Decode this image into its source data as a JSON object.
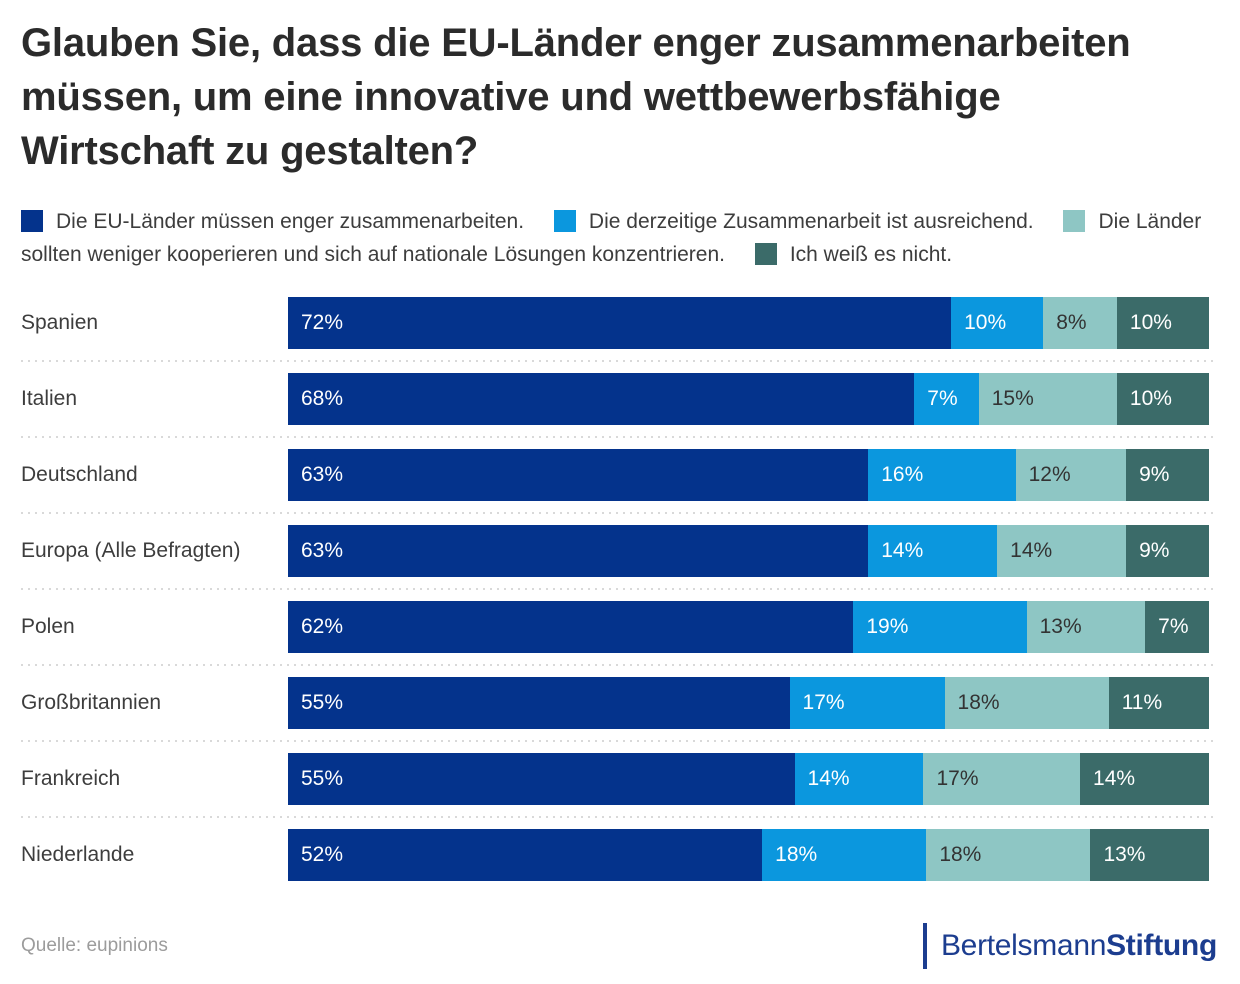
{
  "title": "Glauben Sie, dass die EU-Länder enger zusammenarbeiten müssen, um eine innovative und wettbewerbsfähige Wirtschaft zu gestalten?",
  "legend": {
    "items": [
      {
        "label": "Die EU-Länder müssen enger zusammenarbeiten.",
        "color": "#04338c"
      },
      {
        "label": "Die derzeitige Zusammenarbeit ist ausreichend.",
        "color": "#0b97de"
      },
      {
        "label": "Die Länder sollten weniger kooperieren und sich auf nationale Lösungen konzentrieren.",
        "color": "#8ec6c4"
      },
      {
        "label": "Ich weiß es nicht.",
        "color": "#3b6b69"
      }
    ]
  },
  "chart_data": {
    "type": "bar",
    "orientation": "horizontal-stacked",
    "value_suffix": "%",
    "xlim": [
      0,
      100
    ],
    "grid": false,
    "legend_position": "top",
    "categories": [
      "Spanien",
      "Italien",
      "Deutschland",
      "Europa (Alle Befragten)",
      "Polen",
      "Großbritannien",
      "Frankreich",
      "Niederlande"
    ],
    "series": [
      {
        "name": "Die EU-Länder müssen enger zusammenarbeiten.",
        "color": "#04338c",
        "label_color": "#ffffff",
        "values": [
          72,
          68,
          63,
          63,
          62,
          55,
          55,
          52
        ]
      },
      {
        "name": "Die derzeitige Zusammenarbeit ist ausreichend.",
        "color": "#0b97de",
        "label_color": "#ffffff",
        "values": [
          10,
          7,
          16,
          14,
          19,
          17,
          14,
          18
        ]
      },
      {
        "name": "Die Länder sollten weniger kooperieren und sich auf nationale Lösungen konzentrieren.",
        "color": "#8ec6c4",
        "label_color": "#333333",
        "values": [
          8,
          15,
          12,
          14,
          13,
          18,
          17,
          18
        ]
      },
      {
        "name": "Ich weiß es nicht.",
        "color": "#3b6b69",
        "label_color": "#ffffff",
        "values": [
          10,
          10,
          9,
          9,
          7,
          11,
          14,
          13
        ]
      }
    ]
  },
  "footer": {
    "source": "Quelle: eupinions",
    "logo": {
      "part1": "Bertelsmann",
      "part2": "Stiftung"
    }
  },
  "colors": {
    "background": "#ffffff",
    "title_text": "#2b2b2b",
    "label_text": "#3d3d3d",
    "source_text": "#9c9c9c",
    "separator": "#d9d9d9",
    "logo": "#1c3d8f"
  }
}
